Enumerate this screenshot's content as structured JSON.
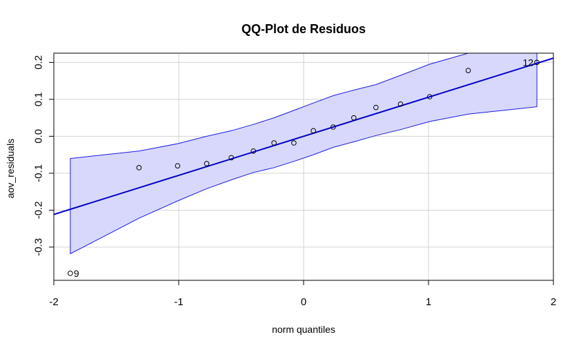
{
  "chart_data": {
    "type": "scatter",
    "title": "QQ-Plot de Residuos",
    "xlabel": "norm quantiles",
    "ylabel": "aov_residuals",
    "xlim": [
      -2.0,
      2.0
    ],
    "ylim": [
      -0.39,
      0.225
    ],
    "xticks": [
      -2,
      -1,
      0,
      1,
      2
    ],
    "xtick_labels": [
      "-2",
      "-1",
      "0",
      "1",
      "2"
    ],
    "yticks": [
      -0.3,
      -0.2,
      -0.1,
      0.0,
      0.1,
      0.2
    ],
    "ytick_labels": [
      "-0.3",
      "-0.2",
      "-0.1",
      "0.0",
      "0.1",
      "0.2"
    ],
    "grid": true,
    "points": [
      {
        "x": -1.868,
        "y": -0.371
      },
      {
        "x": -1.318,
        "y": -0.085
      },
      {
        "x": -1.009,
        "y": -0.08
      },
      {
        "x": -0.776,
        "y": -0.074
      },
      {
        "x": -0.579,
        "y": -0.058
      },
      {
        "x": -0.402,
        "y": -0.04
      },
      {
        "x": -0.237,
        "y": -0.018
      },
      {
        "x": -0.078,
        "y": -0.018
      },
      {
        "x": 0.078,
        "y": 0.015
      },
      {
        "x": 0.237,
        "y": 0.025
      },
      {
        "x": 0.402,
        "y": 0.05
      },
      {
        "x": 0.579,
        "y": 0.078
      },
      {
        "x": 0.776,
        "y": 0.087
      },
      {
        "x": 1.009,
        "y": 0.107
      },
      {
        "x": 1.318,
        "y": 0.178
      },
      {
        "x": 1.868,
        "y": 0.2
      }
    ],
    "point_labels": [
      {
        "text": "9",
        "x": -1.868,
        "y": -0.371,
        "side": "right"
      },
      {
        "text": "12",
        "x": 1.868,
        "y": 0.2,
        "side": "left"
      }
    ],
    "reference_line": {
      "intercept": 0.0,
      "slope": 0.1058
    },
    "confidence_band": {
      "x": [
        -1.868,
        -1.318,
        -1.009,
        -0.776,
        -0.579,
        -0.402,
        -0.237,
        -0.078,
        0.078,
        0.237,
        0.402,
        0.579,
        0.776,
        1.009,
        1.318,
        1.868
      ],
      "upper": [
        -0.06,
        -0.04,
        -0.02,
        0.0,
        0.015,
        0.032,
        0.05,
        0.07,
        0.09,
        0.11,
        0.125,
        0.14,
        0.165,
        0.195,
        0.225,
        0.225
      ],
      "lower": [
        -0.318,
        -0.222,
        -0.175,
        -0.142,
        -0.118,
        -0.098,
        -0.085,
        -0.068,
        -0.05,
        -0.03,
        -0.015,
        0.002,
        0.018,
        0.04,
        0.06,
        0.08
      ]
    },
    "colors": {
      "band_fill": "#d8d8fc",
      "band_edge": "#1a1adf",
      "line": "#0000cc",
      "points": "#000000",
      "grid": "#d3d3d3",
      "axis": "#000000"
    }
  }
}
